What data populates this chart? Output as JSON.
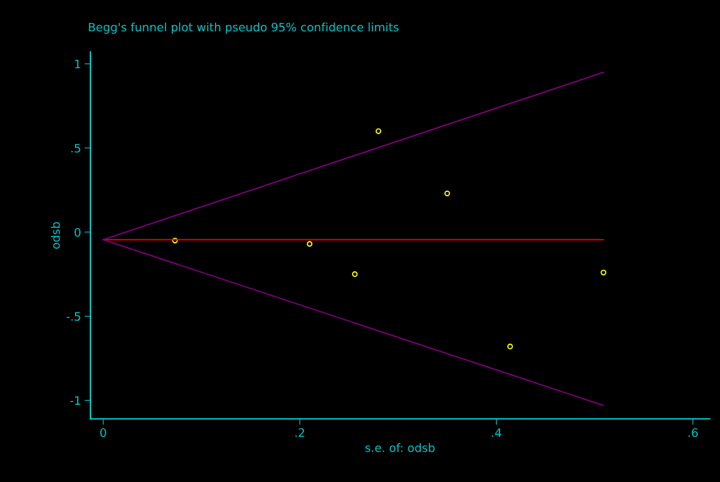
{
  "chart_data": {
    "type": "scatter",
    "title": "Begg's funnel plot with pseudo 95% confidence limits",
    "xlabel": "s.e. of: odsb",
    "ylabel": "odsb",
    "xlim": [
      -0.013,
      0.617
    ],
    "ylim": [
      -1.11,
      1.07
    ],
    "xticks": [
      0,
      {
        "value": 0.2,
        "label": ".2"
      },
      {
        "value": 0.4,
        "label": ".4"
      },
      {
        "value": 0.6,
        "label": ".6"
      }
    ],
    "yticks": [
      {
        "value": -1,
        "label": "-1"
      },
      {
        "value": -0.5,
        "label": "-.5"
      },
      0,
      {
        "value": 0.5,
        "label": ".5"
      },
      1
    ],
    "grid": false,
    "legend": false,
    "series": [
      {
        "marker": "circle",
        "color": "#ffff00",
        "x": [
          0.073,
          0.21,
          0.256,
          0.28,
          0.35,
          0.414,
          0.509
        ],
        "values": [
          -0.05,
          -0.07,
          -0.25,
          0.6,
          0.23,
          -0.68,
          -0.24
        ]
      },
      {
        "type": "line",
        "color": "#ff0000",
        "x": [
          0,
          0.509
        ],
        "values": [
          -0.045,
          -0.045
        ]
      },
      {
        "type": "line",
        "color": "#800080",
        "x": [
          0,
          0.509
        ],
        "values": [
          -0.045,
          0.95
        ]
      },
      {
        "type": "line",
        "color": "#800080",
        "x": [
          0,
          0.509
        ],
        "values": [
          -0.045,
          -1.03
        ]
      }
    ]
  }
}
